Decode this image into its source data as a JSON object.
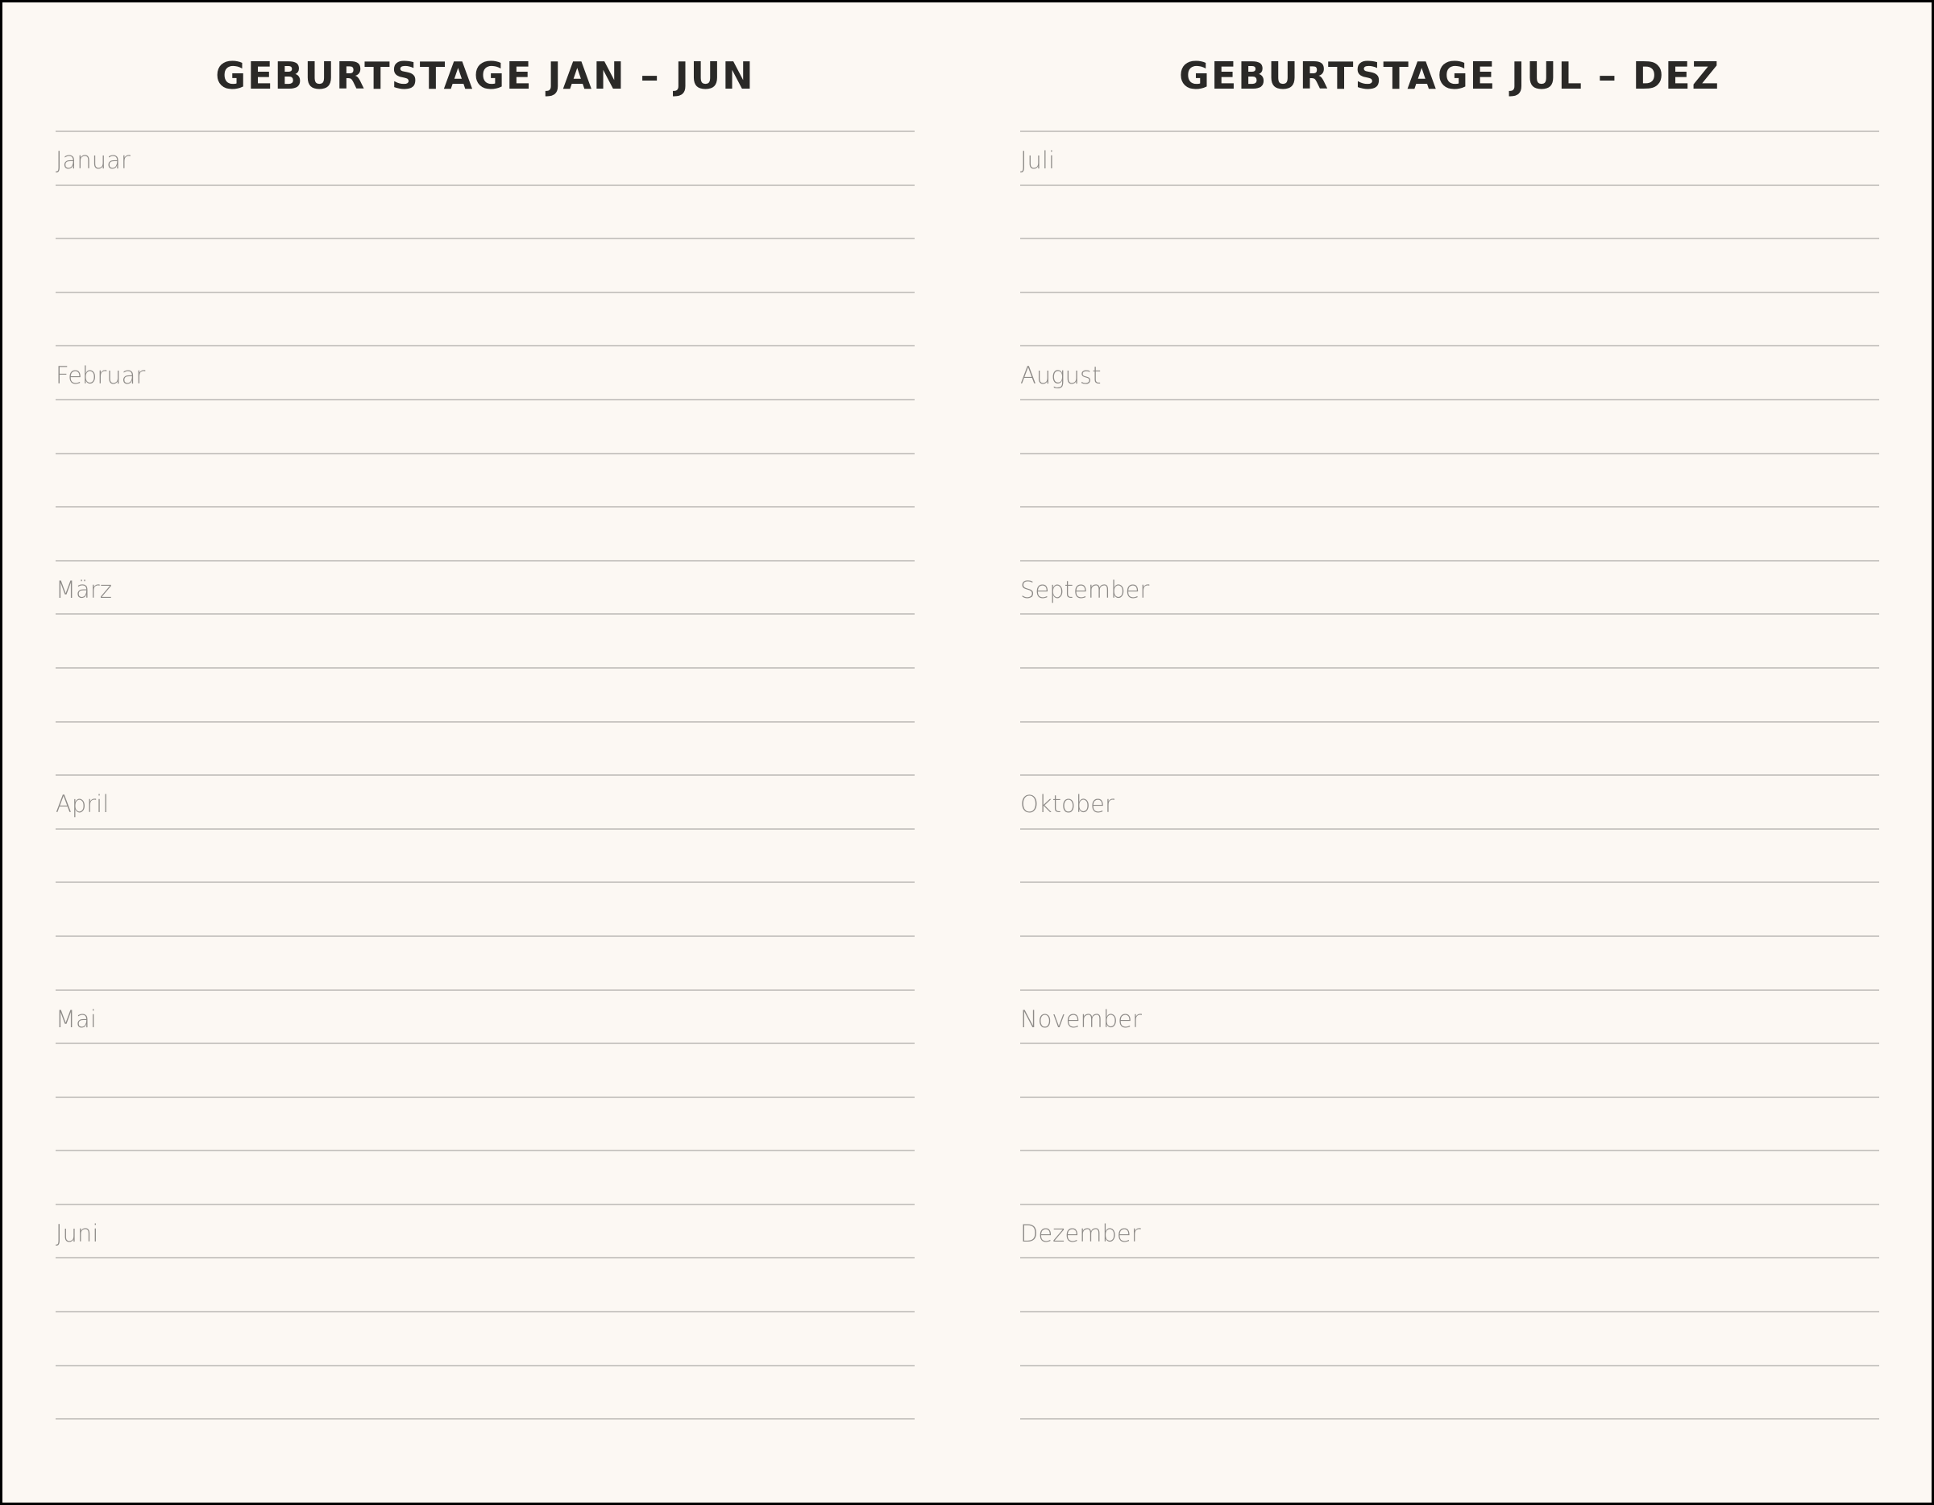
{
  "left": {
    "title": "GEBURTSTAGE JAN – JUN",
    "months": [
      "Januar",
      "Februar",
      "März",
      "April",
      "Mai",
      "Juni"
    ]
  },
  "right": {
    "title": "GEBURTSTAGE JUL – DEZ",
    "months": [
      "Juli",
      "August",
      "September",
      "Oktober",
      "November",
      "Dezember"
    ]
  },
  "lines_per_month": 4
}
